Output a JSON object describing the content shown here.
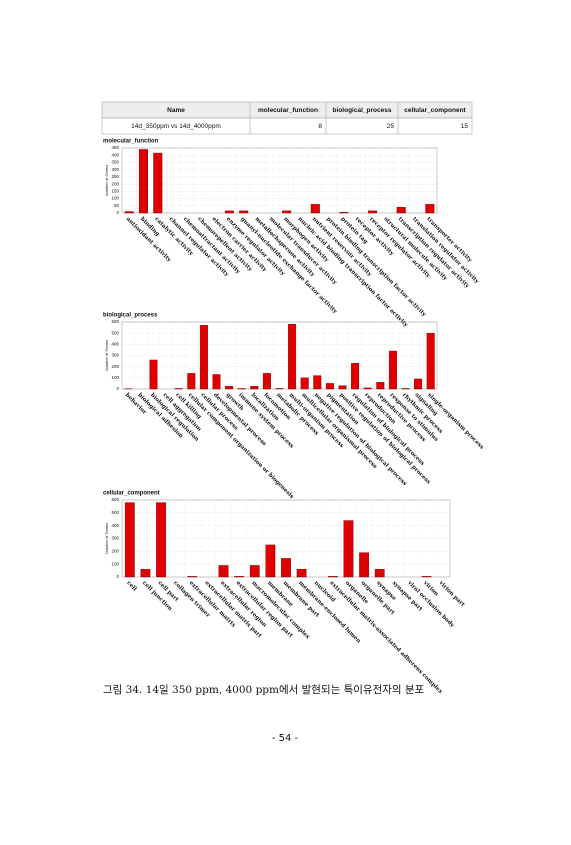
{
  "table": {
    "header": [
      "Name",
      "molecular_function",
      "biological_process",
      "cellular_component"
    ],
    "rows": [
      [
        "14d_350ppm vs 14d_4000ppm",
        "8",
        "25",
        "15"
      ]
    ]
  },
  "chart_data": [
    {
      "type": "bar",
      "title": "molecular_function",
      "y_label": "Number of Genes",
      "color": "#e00000",
      "grid": true,
      "ylim": [
        0,
        450
      ],
      "yticks": [
        0,
        50,
        100,
        150,
        200,
        250,
        300,
        350,
        400,
        450
      ],
      "categories": [
        "antioxidant activity",
        "binding",
        "catalytic activity",
        "channel regulator activity",
        "chemoattractant activity",
        "chemorepellent activity",
        "electron carrier activity",
        "enzyme regulator activity",
        "guanyl-nucleotide exchange factor activity",
        "metallochaperone activity",
        "molecular transducer activity",
        "morphogen activity",
        "nucleic acid binding transcription factor activity",
        "nutrient reservoir activity",
        "protein binding transcription factor activity",
        "protein tag",
        "receptor activity",
        "receptor regulator activity",
        "structural molecule activity",
        "transcription regulator activity",
        "translation regulator activity",
        "transporter activity"
      ],
      "values": [
        10,
        440,
        415,
        0,
        0,
        0,
        0,
        15,
        15,
        0,
        0,
        15,
        0,
        60,
        0,
        5,
        0,
        15,
        0,
        40,
        0,
        60
      ]
    },
    {
      "type": "bar",
      "title": "biological_process",
      "y_label": "Number of Genes",
      "color": "#e00000",
      "grid": true,
      "ylim": [
        0,
        600
      ],
      "yticks": [
        0,
        100,
        200,
        300,
        400,
        500,
        600
      ],
      "categories": [
        "behavior",
        "biological adhesion",
        "biological regulation",
        "cell aggregation",
        "cell killing",
        "cellular component organization or biogenesis",
        "cellular process",
        "developmental process",
        "growth",
        "immune system process",
        "localization",
        "locomotion",
        "metabolic process",
        "multi-organism process",
        "multicellular organismal process",
        "negative regulation of biological process",
        "pigmentation",
        "positive regulation of biological process",
        "regulation of biological process",
        "reproduction",
        "reproductive process",
        "response to stimulus",
        "rhythmic process",
        "signaling",
        "single-organism process"
      ],
      "values": [
        2,
        0,
        260,
        0,
        5,
        140,
        570,
        130,
        25,
        5,
        25,
        140,
        5,
        580,
        100,
        120,
        50,
        30,
        230,
        10,
        60,
        340,
        5,
        90,
        500
      ]
    },
    {
      "type": "bar",
      "title": "cellular_component",
      "y_label": "Number of Genes",
      "color": "#e00000",
      "grid": true,
      "ylim": [
        0,
        600
      ],
      "yticks": [
        0,
        100,
        200,
        300,
        400,
        500,
        600
      ],
      "categories": [
        "cell",
        "cell junction",
        "cell part",
        "collagen trimer",
        "extracellular matrix",
        "extracellular matrix part",
        "extracellular region",
        "extracellular region part",
        "macromolecular complex",
        "membrane",
        "membrane part",
        "membrane-enclosed lumen",
        "nucleoid",
        "extracellular matrix-associated adherens complex",
        "organelle",
        "organelle part",
        "synapse",
        "synapse part",
        "viral occlusion body",
        "virion",
        "virion part"
      ],
      "values": [
        580,
        60,
        580,
        0,
        5,
        0,
        90,
        5,
        90,
        250,
        145,
        60,
        0,
        5,
        440,
        190,
        60,
        0,
        0,
        5,
        0
      ]
    }
  ],
  "caption": "그림 34. 14일 350 ppm, 4000 ppm에서 발현되는 특이유전자의 분포",
  "page_number": "- 54 -"
}
